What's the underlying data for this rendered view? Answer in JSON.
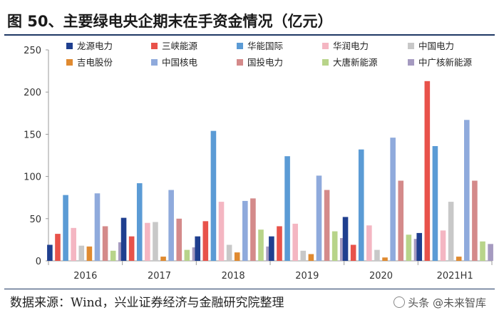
{
  "header": {
    "title": "图 50、主要绿电央企期末在手资金情况（亿元）"
  },
  "footer": {
    "source": "数据来源：Wind，兴业证券经济与金融研究院整理",
    "watermark": "头条 @未来智库"
  },
  "colors": {
    "series": [
      "#1f3f8f",
      "#e8524a",
      "#5b9bd5",
      "#f4b6c2",
      "#c8c8c8",
      "#e08a30",
      "#8faadc",
      "#d48a8a",
      "#b8d48a",
      "#a59ac0"
    ]
  },
  "chart_data": {
    "type": "bar",
    "title": "主要绿电央企期末在手资金情况（亿元）",
    "xlabel": "",
    "ylabel": "",
    "ylim": [
      0,
      250
    ],
    "yticks": [
      0,
      50,
      100,
      150,
      200,
      250
    ],
    "legend_position": "top",
    "categories": [
      "2016",
      "2017",
      "2018",
      "2019",
      "2020",
      "2021H1"
    ],
    "series": [
      {
        "name": "龙源电力",
        "values": [
          19,
          51,
          29,
          29,
          52,
          33
        ]
      },
      {
        "name": "三峡能源",
        "values": [
          32,
          29,
          47,
          41,
          19,
          213
        ]
      },
      {
        "name": "华能国际",
        "values": [
          78,
          92,
          154,
          124,
          132,
          136
        ]
      },
      {
        "name": "华润电力",
        "values": [
          39,
          45,
          70,
          44,
          42,
          36
        ]
      },
      {
        "name": "中国电力",
        "values": [
          18,
          46,
          19,
          12,
          13,
          70
        ]
      },
      {
        "name": "吉电股份",
        "values": [
          17,
          5,
          10,
          8,
          4,
          5
        ]
      },
      {
        "name": "中国核电",
        "values": [
          80,
          84,
          71,
          101,
          146,
          167
        ]
      },
      {
        "name": "国投电力",
        "values": [
          41,
          50,
          74,
          84,
          95,
          95
        ]
      },
      {
        "name": "大唐新能源",
        "values": [
          12,
          13,
          37,
          35,
          31,
          23
        ]
      },
      {
        "name": "中广核新能源",
        "values": [
          22,
          16,
          17,
          27,
          26,
          20
        ]
      }
    ]
  }
}
